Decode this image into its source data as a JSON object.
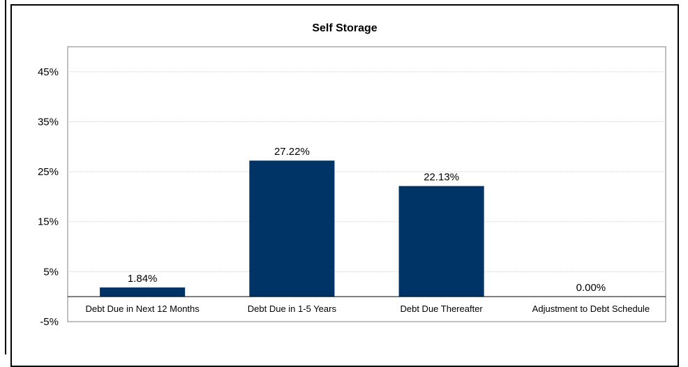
{
  "chart_data": {
    "type": "bar",
    "title": "Self Storage",
    "categories": [
      "Debt Due in Next 12 Months",
      "Debt Due in 1-5 Years",
      "Debt Due Thereafter",
      "Adjustment to Debt Schedule"
    ],
    "values": [
      1.84,
      27.22,
      22.13,
      0.0
    ],
    "data_labels": [
      "1.84%",
      "27.22%",
      "22.13%",
      "0.00%"
    ],
    "yticks": [
      45,
      35,
      25,
      15,
      5,
      -5
    ],
    "ytick_labels": [
      "45%",
      "35%",
      "25%",
      "15%",
      "5%",
      "-5%"
    ],
    "ylim": [
      -5,
      50
    ],
    "grid": true,
    "bar_color": "#003366",
    "grid_color": "#d0d0d0",
    "xlabel": "",
    "ylabel": ""
  }
}
